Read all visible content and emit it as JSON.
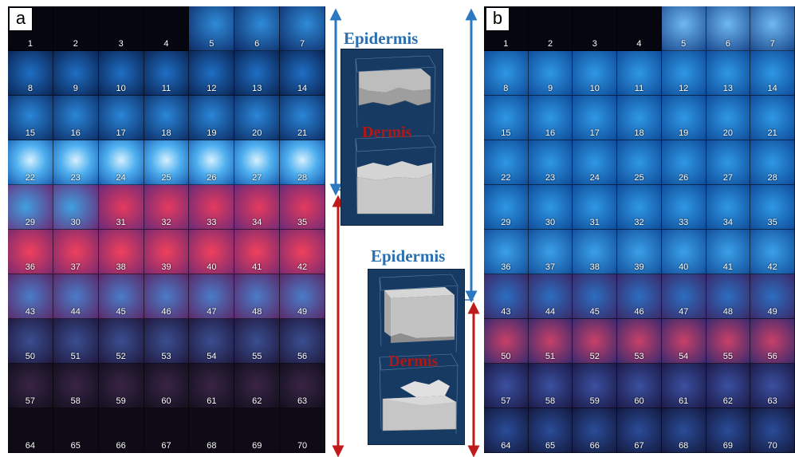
{
  "panels": [
    {
      "id": "a",
      "letter": "a",
      "tile_labels": [
        "1",
        "2",
        "3",
        "4",
        "5",
        "6",
        "7",
        "8",
        "9",
        "10",
        "11",
        "12",
        "13",
        "14",
        "15",
        "16",
        "17",
        "18",
        "19",
        "20",
        "21",
        "22",
        "23",
        "24",
        "25",
        "26",
        "27",
        "28",
        "29",
        "30",
        "31",
        "32",
        "33",
        "34",
        "35",
        "36",
        "37",
        "38",
        "39",
        "40",
        "41",
        "42",
        "43",
        "44",
        "45",
        "46",
        "47",
        "48",
        "49",
        "50",
        "51",
        "52",
        "53",
        "54",
        "55",
        "56",
        "57",
        "58",
        "59",
        "60",
        "61",
        "62",
        "63",
        "64",
        "65",
        "66",
        "67",
        "68",
        "69",
        "70"
      ]
    },
    {
      "id": "b",
      "letter": "b",
      "tile_labels": [
        "1",
        "2",
        "3",
        "4",
        "5",
        "6",
        "7",
        "8",
        "9",
        "10",
        "11",
        "12",
        "13",
        "14",
        "15",
        "16",
        "17",
        "18",
        "19",
        "20",
        "21",
        "22",
        "23",
        "24",
        "25",
        "26",
        "27",
        "28",
        "29",
        "30",
        "31",
        "32",
        "33",
        "34",
        "35",
        "36",
        "37",
        "38",
        "39",
        "40",
        "41",
        "42",
        "43",
        "44",
        "45",
        "46",
        "47",
        "48",
        "49",
        "50",
        "51",
        "52",
        "53",
        "54",
        "55",
        "56",
        "57",
        "58",
        "59",
        "60",
        "61",
        "62",
        "63",
        "64",
        "65",
        "66",
        "67",
        "68",
        "69",
        "70"
      ]
    }
  ],
  "models": [
    {
      "top_label": "Epidermis",
      "bottom_label": "Dermis"
    },
    {
      "top_label": "Epidermis",
      "bottom_label": "Dermis"
    }
  ],
  "colors": {
    "epidermis_arrow": "#2a78c0",
    "dermis_arrow": "#c01a1a",
    "epidermis_text": "#2a6fb0",
    "dermis_text": "#b01818",
    "model_background": "#173a63"
  }
}
